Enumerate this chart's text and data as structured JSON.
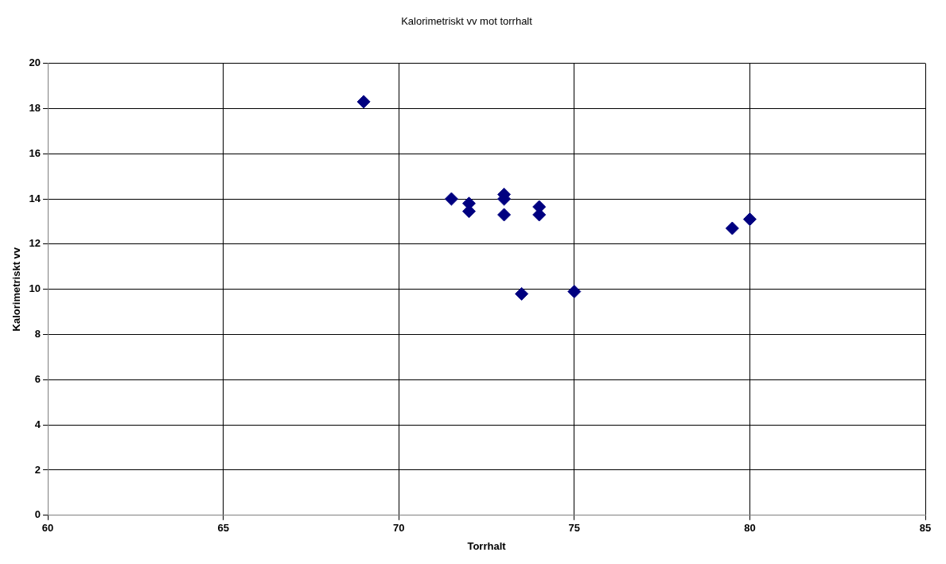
{
  "chart_data": {
    "type": "scatter",
    "title": "Kalorimetriskt vv mot torrhalt",
    "xlabel": "Torrhalt",
    "ylabel": "Kalorimetriskt vv",
    "x": [
      69,
      71.5,
      72,
      72,
      73,
      73,
      73,
      74,
      74,
      73.5,
      75,
      79.5,
      80
    ],
    "series": [
      {
        "color": "#000080",
        "values": [
          18.3,
          14.0,
          13.8,
          13.45,
          14.2,
          14.0,
          13.3,
          13.65,
          13.3,
          9.8,
          9.9,
          12.7,
          13.1
        ]
      }
    ],
    "xlim": [
      60,
      85
    ],
    "xticks": [
      60,
      65,
      70,
      75,
      80,
      85
    ],
    "ylim": [
      0,
      20
    ],
    "yticks": [
      0,
      2,
      4,
      6,
      8,
      10,
      12,
      14,
      16,
      18,
      20
    ],
    "grid": true,
    "marker": "diamond",
    "legend": false
  }
}
